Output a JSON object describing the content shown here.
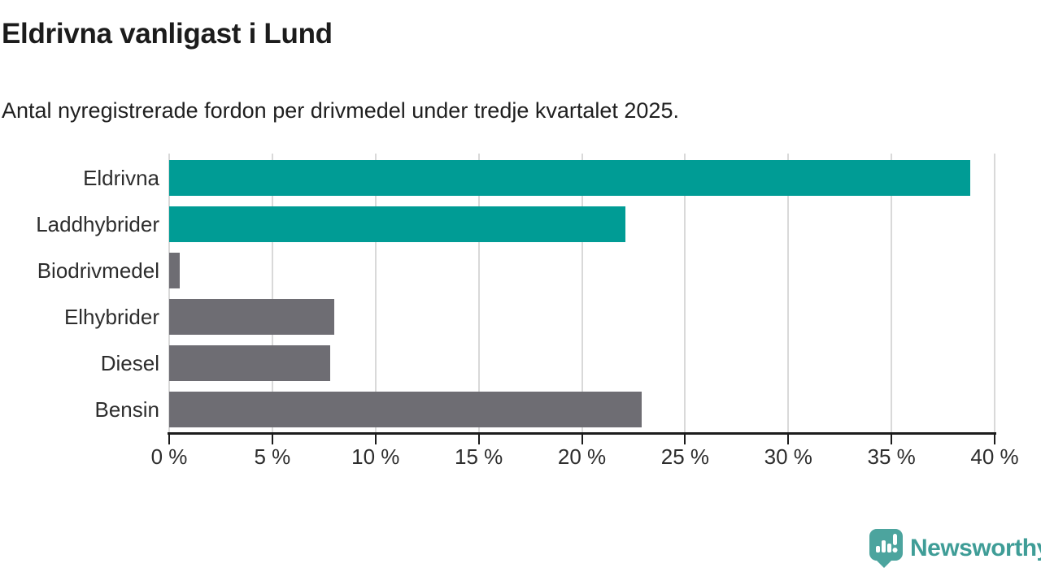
{
  "chart_data": {
    "type": "bar",
    "orientation": "horizontal",
    "title": "Eldrivna vanligast i Lund",
    "subtitle": "Antal nyregistrerade fordon per drivmedel under tredje kvartalet 2025.",
    "categories": [
      "Eldrivna",
      "Laddhybrider",
      "Biodrivmedel",
      "Elhybrider",
      "Diesel",
      "Bensin"
    ],
    "values": [
      38.8,
      22.1,
      0.5,
      8.0,
      7.8,
      22.9
    ],
    "unit": "%",
    "xlabel": "",
    "ylabel": "",
    "xlim": [
      0,
      40
    ],
    "x_ticks": [
      0,
      5,
      10,
      15,
      20,
      25,
      30,
      35,
      40
    ],
    "x_tick_label_format": "{v} %",
    "grid": true,
    "legend": "none",
    "highlight_color": "#009C95",
    "default_color": "#6E6D73",
    "bar_colors": [
      "#009C95",
      "#009C95",
      "#6E6D73",
      "#6E6D73",
      "#6E6D73",
      "#6E6D73"
    ]
  },
  "footer": {
    "logo_text": "Newsworthy",
    "logo_icon": "newsworthy-pin-barchart-icon",
    "logo_text_color": "#3F9D97",
    "logo_mark_color": "#4CA49E"
  }
}
